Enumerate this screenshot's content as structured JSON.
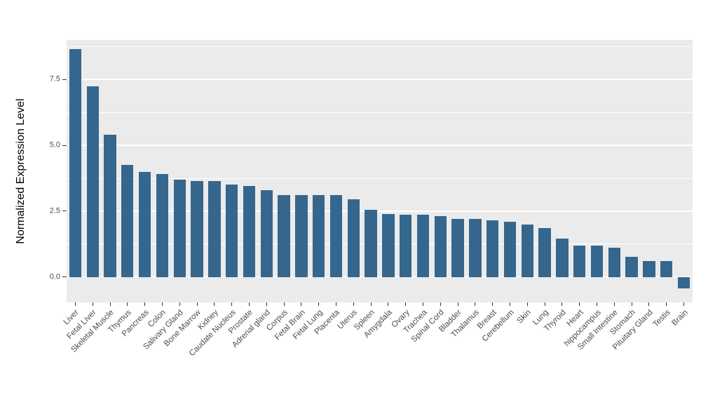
{
  "chart_data": {
    "type": "bar",
    "title": "",
    "xlabel": "",
    "ylabel": "Normalized Expression Level",
    "ylim": [
      -0.97,
      9.0
    ],
    "ytick_values": [
      0.0,
      2.5,
      5.0,
      7.5
    ],
    "ytick_labels": [
      "0.0",
      "2.5",
      "5.0",
      "7.5"
    ],
    "minor_gridlines": [
      1.25,
      3.75,
      6.25,
      8.75
    ],
    "grid": "on",
    "legend": "none",
    "categories": [
      "Liver",
      "Fetal Liver",
      "Skeletal Muscle",
      "Thymus",
      "Pancreas",
      "Colon",
      "Salivary Gland",
      "Bone Marrow",
      "Kidney",
      "Caudate Nucleus",
      "Prostate",
      "Adrenal gland",
      "Corpus",
      "Fetal Brain",
      "Fetal Lung",
      "Placenta",
      "Uterus",
      "Spleen",
      "Amygdala",
      "Ovary",
      "Trachea",
      "Spinal Cord",
      "Bladder",
      "Thalamus",
      "Breast",
      "Cerebellum",
      "Skin",
      "Lung",
      "Thyroid",
      "Heart",
      "hippocampus",
      "Small Intestine",
      "Stomach",
      "Pituitary Gland",
      "Testis",
      "Brain"
    ],
    "values": [
      8.65,
      7.25,
      5.4,
      4.25,
      4.0,
      3.9,
      3.7,
      3.65,
      3.65,
      3.5,
      3.45,
      3.3,
      3.1,
      3.1,
      3.1,
      3.1,
      2.95,
      2.55,
      2.4,
      2.35,
      2.35,
      2.3,
      2.2,
      2.2,
      2.15,
      2.1,
      2.0,
      1.85,
      1.45,
      1.2,
      1.2,
      1.1,
      0.75,
      0.6,
      0.6,
      -0.45
    ],
    "bar_color": "#35678E",
    "panel_background": "#EBEBEB",
    "grid_color": "#FFFFFF",
    "axis_text_color": "#4D4D4D",
    "axis_title_color": "#000000",
    "tick_mark_color": "#333333"
  }
}
